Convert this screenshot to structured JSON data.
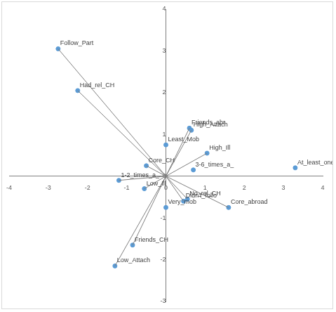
{
  "chart_data": {
    "type": "scatter",
    "xlim": [
      -4,
      4
    ],
    "xticks": [
      -4,
      -3,
      -2,
      -1,
      0,
      1,
      2,
      3,
      4
    ],
    "ylim": [
      -3,
      4
    ],
    "yticks": [
      -3,
      -2,
      -1,
      0,
      1,
      2,
      3,
      4
    ],
    "grid": false,
    "series": [
      {
        "color": "#5b9bd5",
        "marker": "circle",
        "line_style": "solid",
        "labels": [
          "Follow_Part",
          "Had_rel_CH",
          "Friends_abr",
          "High_Attach",
          "High_Ill",
          "Core_CH",
          "1-2_times_a_",
          "Low_Ill",
          "No_rel_CH",
          "Didn't_follo",
          "Core_abroad",
          "Friends_CH",
          "Low_Attach"
        ],
        "x": [
          -2.75,
          -2.25,
          0.6,
          0.65,
          1.05,
          -0.5,
          -1.2,
          -0.55,
          0.55,
          0.45,
          1.6,
          -0.85,
          -1.3
        ],
        "y": [
          3.05,
          2.05,
          1.15,
          1.1,
          0.55,
          0.25,
          -0.1,
          -0.3,
          -0.55,
          -0.6,
          -0.75,
          -1.65,
          -2.15
        ]
      },
      {
        "color": "#5b9bd5",
        "marker": "circle",
        "line_style": "none",
        "labels": [
          "Least_Mob",
          "At_least_one",
          "3-6_times_a_",
          "Very_mob"
        ],
        "x": [
          0,
          3.3,
          0.7,
          0
        ],
        "y": [
          0.75,
          0.2,
          0.15,
          -0.75
        ]
      }
    ]
  }
}
